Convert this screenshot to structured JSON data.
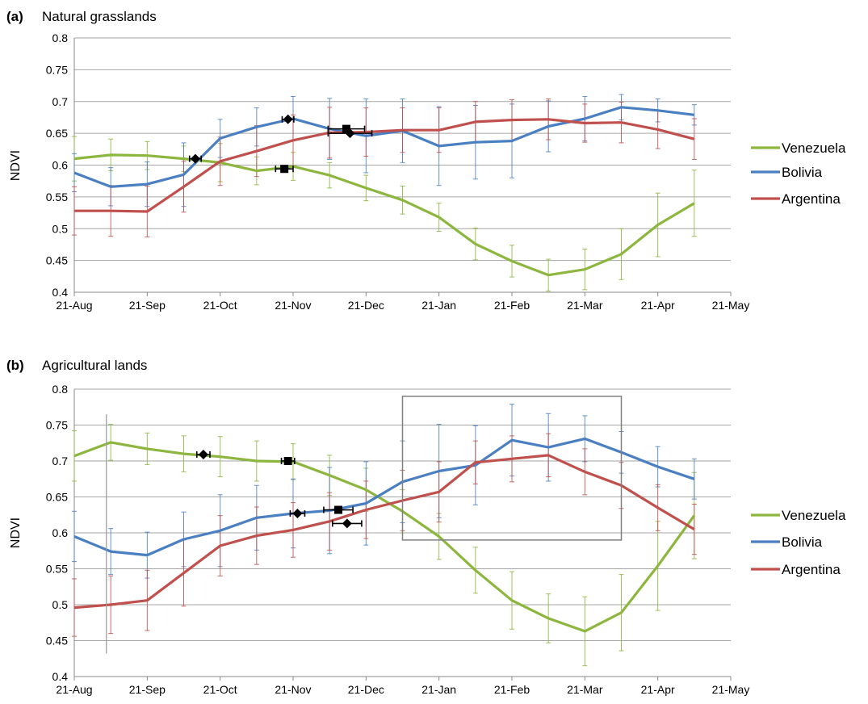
{
  "chart_data": [
    {
      "type": "line",
      "panel_label": "(a)",
      "title": "Natural grasslands",
      "ylabel": "NDVI",
      "xlabel": "",
      "ylim": [
        0.4,
        0.8
      ],
      "yticks": [
        "0.4",
        "0.45",
        "0.5",
        "0.55",
        "0.6",
        "0.65",
        "0.7",
        "0.75",
        "0.8"
      ],
      "xtick_labels": [
        "21-Aug",
        "21-Sep",
        "21-Oct",
        "21-Nov",
        "21-Dec",
        "21-Jan",
        "21-Feb",
        "21-Mar",
        "21-Apr",
        "21-May"
      ],
      "grid": true,
      "legend_position": "right",
      "series": [
        {
          "name": "Venezuela",
          "color": "#8db63f",
          "x": [
            0,
            0.5,
            1,
            1.5,
            2,
            2.5,
            3,
            3.5,
            4,
            4.5,
            5,
            5.5,
            6,
            6.5,
            7,
            7.5,
            8,
            8.5,
            9
          ],
          "values": [
            0.61,
            0.616,
            0.615,
            0.61,
            0.604,
            0.591,
            0.598,
            0.584,
            0.564,
            0.545,
            0.518,
            0.476,
            0.449,
            0.427,
            0.436,
            0.46,
            0.506,
            0.54,
            null
          ],
          "err": [
            0.035,
            0.025,
            0.022,
            0.02,
            0.03,
            0.022,
            0.022,
            0.02,
            0.02,
            0.022,
            0.022,
            0.025,
            0.025,
            0.025,
            0.032,
            0.04,
            0.05,
            0.052,
            null
          ]
        },
        {
          "name": "Bolivia",
          "color": "#4a7fc1",
          "x": [
            0,
            0.5,
            1,
            1.5,
            2,
            2.5,
            3,
            3.5,
            4,
            4.5,
            5,
            5.5,
            6,
            6.5,
            7,
            7.5,
            8,
            8.5,
            9
          ],
          "values": [
            0.588,
            0.566,
            0.57,
            0.585,
            0.642,
            0.66,
            0.673,
            0.657,
            0.646,
            0.654,
            0.63,
            0.636,
            0.638,
            0.661,
            0.673,
            0.691,
            0.686,
            0.679,
            null
          ],
          "err": [
            0.03,
            0.03,
            0.035,
            0.05,
            0.03,
            0.03,
            0.035,
            0.048,
            0.058,
            0.05,
            0.062,
            0.058,
            0.058,
            0.04,
            0.035,
            0.02,
            0.018,
            0.016,
            null
          ]
        },
        {
          "name": "Argentina",
          "color": "#c0504d",
          "x": [
            0,
            0.5,
            1,
            1.5,
            2,
            2.5,
            3,
            3.5,
            4,
            4.5,
            5,
            5.5,
            6,
            6.5,
            7,
            7.5,
            8,
            8.5,
            9
          ],
          "values": [
            0.528,
            0.528,
            0.527,
            0.566,
            0.606,
            0.622,
            0.639,
            0.651,
            0.652,
            0.655,
            0.655,
            0.668,
            0.671,
            0.672,
            0.666,
            0.667,
            0.656,
            0.641,
            null
          ],
          "err": [
            0.038,
            0.04,
            0.04,
            0.04,
            0.038,
            0.04,
            0.04,
            0.04,
            0.038,
            0.035,
            0.035,
            0.032,
            0.032,
            0.032,
            0.03,
            0.032,
            0.03,
            0.032,
            null
          ]
        }
      ],
      "markers": [
        {
          "shape": "diamond",
          "x": 1.66,
          "y": 0.61,
          "xerr": 0.08
        },
        {
          "shape": "diamond",
          "x": 2.93,
          "y": 0.672,
          "xerr": 0.08
        },
        {
          "shape": "square",
          "x": 2.88,
          "y": 0.594,
          "xerr": 0.12
        },
        {
          "shape": "square",
          "x": 3.73,
          "y": 0.657,
          "xerr": 0.25
        },
        {
          "shape": "diamond",
          "x": 3.78,
          "y": 0.65,
          "xerr": 0.3
        }
      ]
    },
    {
      "type": "line",
      "panel_label": "(b)",
      "title": "Agricultural lands",
      "ylabel": "NDVI",
      "xlabel": "",
      "ylim": [
        0.4,
        0.8
      ],
      "yticks": [
        "0.4",
        "0.45",
        "0.5",
        "0.55",
        "0.6",
        "0.65",
        "0.7",
        "0.75",
        "0.8"
      ],
      "xtick_labels": [
        "21-Aug",
        "21-Sep",
        "21-Oct",
        "21-Nov",
        "21-Dec",
        "21-Jan",
        "21-Feb",
        "21-Mar",
        "21-Apr",
        "21-May"
      ],
      "grid": true,
      "legend_position": "right",
      "highlight_box": {
        "x": [
          4.5,
          7.5
        ],
        "y": [
          0.59,
          0.79
        ]
      },
      "vertical_line": {
        "x": 0.44,
        "y": [
          0.432,
          0.765
        ]
      },
      "series": [
        {
          "name": "Venezuela",
          "color": "#8db63f",
          "x": [
            0,
            0.5,
            1,
            1.5,
            2,
            2.5,
            3,
            3.5,
            4,
            4.5,
            5,
            5.5,
            6,
            6.5,
            7,
            7.5,
            8,
            8.5,
            9
          ],
          "values": [
            0.707,
            0.726,
            0.717,
            0.71,
            0.706,
            0.7,
            0.699,
            0.68,
            0.66,
            0.63,
            0.595,
            0.548,
            0.506,
            0.481,
            0.463,
            0.489,
            0.554,
            0.624,
            null
          ],
          "err": [
            0.035,
            0.025,
            0.022,
            0.025,
            0.028,
            0.028,
            0.025,
            0.028,
            0.03,
            0.03,
            0.032,
            0.032,
            0.04,
            0.034,
            0.048,
            0.053,
            0.062,
            0.06,
            null
          ]
        },
        {
          "name": "Bolivia",
          "color": "#4a7fc1",
          "x": [
            0,
            0.5,
            1,
            1.5,
            2,
            2.5,
            3,
            3.5,
            4,
            4.5,
            5,
            5.5,
            6,
            6.5,
            7,
            7.5,
            8,
            8.5,
            9
          ],
          "values": [
            0.595,
            0.574,
            0.569,
            0.591,
            0.603,
            0.621,
            0.627,
            0.631,
            0.641,
            0.671,
            0.686,
            0.694,
            0.729,
            0.719,
            0.731,
            0.712,
            0.692,
            0.675,
            null
          ],
          "err": [
            0.035,
            0.032,
            0.032,
            0.038,
            0.05,
            0.045,
            0.048,
            0.06,
            0.058,
            0.057,
            0.065,
            0.055,
            0.05,
            0.047,
            0.032,
            0.029,
            0.028,
            0.028,
            null
          ]
        },
        {
          "name": "Argentina",
          "color": "#c0504d",
          "x": [
            0,
            0.5,
            1,
            1.5,
            2,
            2.5,
            3,
            3.5,
            4,
            4.5,
            5,
            5.5,
            6,
            6.5,
            7,
            7.5,
            8,
            8.5,
            9
          ],
          "values": [
            0.496,
            0.5,
            0.506,
            0.544,
            0.582,
            0.596,
            0.604,
            0.616,
            0.632,
            0.645,
            0.657,
            0.698,
            0.703,
            0.708,
            0.685,
            0.666,
            0.635,
            0.605,
            null
          ],
          "err": [
            0.04,
            0.04,
            0.042,
            0.046,
            0.042,
            0.04,
            0.038,
            0.04,
            0.04,
            0.042,
            0.042,
            0.03,
            0.032,
            0.03,
            0.032,
            0.032,
            0.032,
            0.035,
            null
          ]
        }
      ],
      "markers": [
        {
          "shape": "diamond",
          "x": 1.77,
          "y": 0.709,
          "xerr": 0.09
        },
        {
          "shape": "square",
          "x": 2.93,
          "y": 0.7,
          "xerr": 0.09
        },
        {
          "shape": "diamond",
          "x": 3.06,
          "y": 0.627,
          "xerr": 0.1
        },
        {
          "shape": "square",
          "x": 3.62,
          "y": 0.632,
          "xerr": 0.2
        },
        {
          "shape": "diamond",
          "x": 3.74,
          "y": 0.613,
          "xerr": 0.2
        }
      ]
    }
  ]
}
